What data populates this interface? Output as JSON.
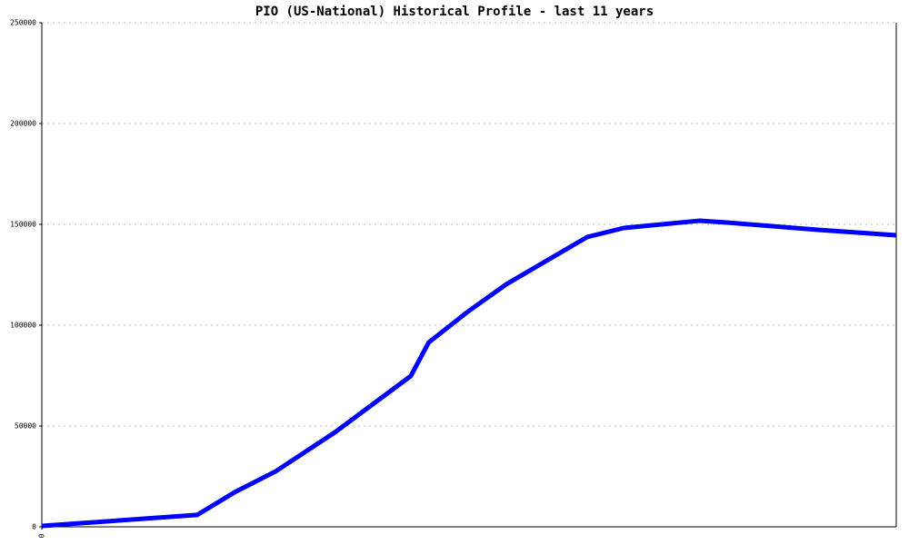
{
  "chart_data": {
    "type": "line",
    "title": "PIO (US-National) Historical Profile - last 11 years",
    "x": [
      0,
      2.0,
      2.48,
      3.01,
      3.77,
      4.75,
      4.98,
      5.47,
      5.98,
      7.02,
      7.49,
      8.47,
      8.82,
      9.99,
      11
    ],
    "series": [
      {
        "color": "#0000ff",
        "values": [
          450,
          5900,
          17100,
          27500,
          46800,
          74800,
          91400,
          106300,
          120300,
          143700,
          148200,
          151800,
          150900,
          147300,
          144600
        ]
      }
    ],
    "xlim": [
      0,
      11
    ],
    "xticks": [
      0
    ],
    "ylim": [
      0,
      250000
    ],
    "yticks": [
      0,
      50000,
      100000,
      150000,
      200000,
      250000
    ],
    "grid": true
  }
}
